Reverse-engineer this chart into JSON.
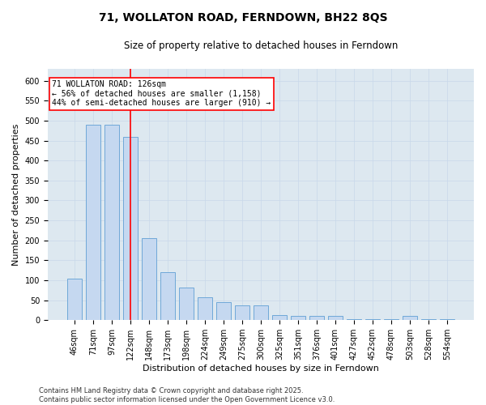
{
  "title": "71, WOLLATON ROAD, FERNDOWN, BH22 8QS",
  "subtitle": "Size of property relative to detached houses in Ferndown",
  "xlabel": "Distribution of detached houses by size in Ferndown",
  "ylabel": "Number of detached properties",
  "categories": [
    "46sqm",
    "71sqm",
    "97sqm",
    "122sqm",
    "148sqm",
    "173sqm",
    "198sqm",
    "224sqm",
    "249sqm",
    "275sqm",
    "300sqm",
    "325sqm",
    "351sqm",
    "376sqm",
    "401sqm",
    "427sqm",
    "452sqm",
    "478sqm",
    "503sqm",
    "528sqm",
    "554sqm"
  ],
  "values": [
    105,
    490,
    490,
    460,
    205,
    120,
    82,
    58,
    45,
    38,
    38,
    13,
    10,
    10,
    10,
    3,
    3,
    3,
    10,
    3,
    3
  ],
  "bar_color": "#c5d8f0",
  "bar_edge_color": "#6fa8d8",
  "red_line_index": 3,
  "annotation_line1": "71 WOLLATON ROAD: 126sqm",
  "annotation_line2": "← 56% of detached houses are smaller (1,158)",
  "annotation_line3": "44% of semi-detached houses are larger (910) →",
  "annotation_box_color": "white",
  "annotation_box_edge_color": "red",
  "ylim": [
    0,
    630
  ],
  "yticks": [
    0,
    50,
    100,
    150,
    200,
    250,
    300,
    350,
    400,
    450,
    500,
    550,
    600
  ],
  "grid_color": "#c8d8ea",
  "background_color": "#dde8f0",
  "footer_text": "Contains HM Land Registry data © Crown copyright and database right 2025.\nContains public sector information licensed under the Open Government Licence v3.0.",
  "title_fontsize": 10,
  "subtitle_fontsize": 8.5,
  "xlabel_fontsize": 8,
  "ylabel_fontsize": 8,
  "tick_fontsize": 7,
  "annotation_fontsize": 7,
  "footer_fontsize": 6
}
